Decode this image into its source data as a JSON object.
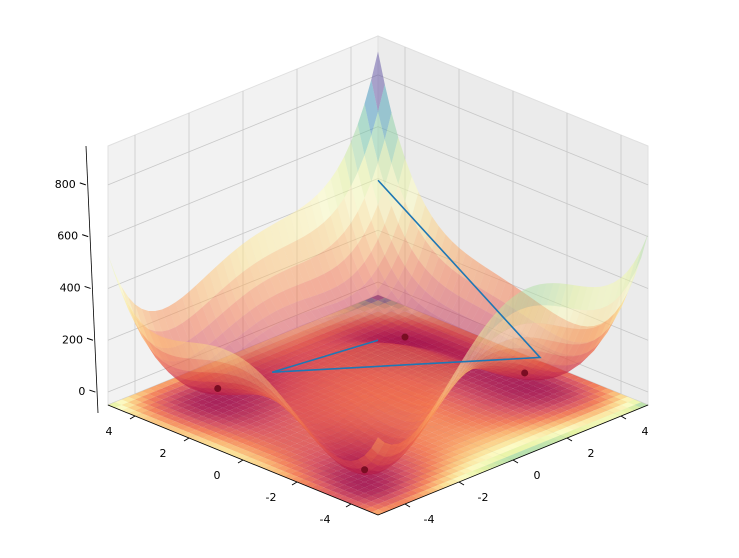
{
  "chart_data": {
    "type": "surface3d",
    "xlim": [
      -5,
      5
    ],
    "ylim": [
      -5,
      5
    ],
    "zlim": [
      -50,
      950
    ],
    "xticks": [
      -4,
      -2,
      0,
      2,
      4
    ],
    "yticks": [
      -4,
      -2,
      0,
      2,
      4
    ],
    "zticks": [
      0,
      200,
      400,
      600,
      800
    ],
    "grid": true,
    "colormap": "Spectral",
    "points": {
      "x": [
        3,
        -2.805,
        -3.779,
        3.584
      ],
      "y": [
        2,
        3.131,
        -3.283,
        -1.848
      ],
      "z": [
        0,
        0,
        0,
        0
      ],
      "color": "#7a0d22"
    },
    "path": {
      "x": [
        4.4,
        3.5,
        -2,
        0
      ],
      "y": [
        4.4,
        -2.5,
        1.92,
        0
      ],
      "z": [
        444,
        91,
        80,
        200
      ],
      "color": "#1f77b4"
    }
  }
}
